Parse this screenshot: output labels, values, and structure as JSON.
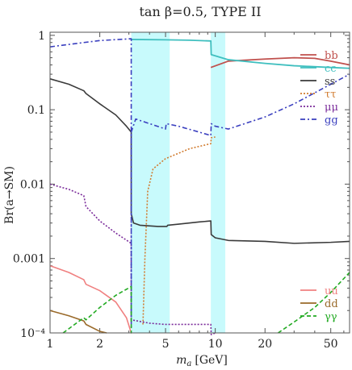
{
  "chart_data": {
    "type": "line",
    "title": "tan β=0.5, TYPE II",
    "xlabel_main": "m",
    "xlabel_sub": "a",
    "xlabel_unit": "[GeV]",
    "ylabel": "Br(a→SM)",
    "x_scale": "log",
    "y_scale": "log",
    "xlim": [
      1,
      65
    ],
    "ylim": [
      0.0001,
      1.1
    ],
    "x_ticks": [
      {
        "v": 1,
        "label": "1"
      },
      {
        "v": 2,
        "label": "2"
      },
      {
        "v": 5,
        "label": "5"
      },
      {
        "v": 10,
        "label": "10"
      },
      {
        "v": 20,
        "label": "20"
      },
      {
        "v": 50,
        "label": "50"
      }
    ],
    "y_ticks": [
      {
        "v": 1,
        "label": "1"
      },
      {
        "v": 0.1,
        "label": "0.1"
      },
      {
        "v": 0.01,
        "label": "0.01"
      },
      {
        "v": 0.001,
        "label": "0.001"
      },
      {
        "v": 0.0001,
        "label": "10⁻⁴"
      }
    ],
    "shaded_bands": [
      {
        "x": [
          3.1,
          5.3
        ],
        "color": "#c8fafc"
      },
      {
        "x": [
          9.4,
          11.5
        ],
        "color": "#c8fafc"
      }
    ],
    "legend_top": {
      "position": "top-right",
      "entries": [
        {
          "label": "bb",
          "color": "#c0504d",
          "dash": ""
        },
        {
          "label": "cc",
          "color": "#3fbfbf",
          "dash": ""
        },
        {
          "label": "ss",
          "color": "#3a3a3a",
          "dash": ""
        },
        {
          "label": "ττ",
          "color": "#d17b2f",
          "dash": "2,2"
        },
        {
          "label": "μμ",
          "color": "#7a2a9a",
          "dash": "2,2"
        },
        {
          "label": "gg",
          "color": "#3a3fbf",
          "dash": "6,3,2,3"
        }
      ]
    },
    "legend_bottom": {
      "position": "bottom-right",
      "entries": [
        {
          "label": "uu",
          "color": "#f08080",
          "dash": ""
        },
        {
          "label": "dd",
          "color": "#9a6a2a",
          "dash": ""
        },
        {
          "label": "γγ",
          "color": "#22aa22",
          "dash": "5,3"
        }
      ]
    },
    "series": [
      {
        "name": "bb",
        "color": "#c0504d",
        "dash": "",
        "width": 1.8,
        "points": [
          [
            9.4,
            0.37
          ],
          [
            12,
            0.45
          ],
          [
            20,
            0.48
          ],
          [
            30,
            0.5
          ],
          [
            40,
            0.49
          ],
          [
            50,
            0.45
          ],
          [
            65,
            0.4
          ]
        ]
      },
      {
        "name": "cc",
        "color": "#3fbfbf",
        "dash": "",
        "width": 1.8,
        "points": [
          [
            3.1,
            0.88
          ],
          [
            5,
            0.87
          ],
          [
            7,
            0.86
          ],
          [
            9.4,
            0.84
          ],
          [
            9.45,
            0.55
          ],
          [
            12,
            0.47
          ],
          [
            20,
            0.42
          ],
          [
            30,
            0.39
          ],
          [
            50,
            0.37
          ],
          [
            65,
            0.36
          ]
        ]
      },
      {
        "name": "ss",
        "color": "#3a3a3a",
        "dash": "",
        "width": 1.6,
        "points": [
          [
            1,
            0.26
          ],
          [
            1.3,
            0.22
          ],
          [
            1.6,
            0.18
          ],
          [
            1.65,
            0.165
          ],
          [
            2,
            0.12
          ],
          [
            2.5,
            0.085
          ],
          [
            2.9,
            0.06
          ],
          [
            3.1,
            0.05
          ],
          [
            3.1,
            0.004
          ],
          [
            3.2,
            0.003
          ],
          [
            3.5,
            0.0028
          ],
          [
            4.5,
            0.0027
          ],
          [
            5.1,
            0.0027
          ],
          [
            5.15,
            0.0028
          ],
          [
            6,
            0.0029
          ],
          [
            8,
            0.0031
          ],
          [
            9.4,
            0.0032
          ],
          [
            9.45,
            0.0021
          ],
          [
            10,
            0.0019
          ],
          [
            12,
            0.00175
          ],
          [
            20,
            0.0017
          ],
          [
            30,
            0.0016
          ],
          [
            50,
            0.00165
          ],
          [
            65,
            0.0017
          ]
        ]
      },
      {
        "name": "ττ",
        "color": "#d17b2f",
        "dash": "2,2",
        "width": 1.6,
        "points": [
          [
            3.65,
            0.00013
          ],
          [
            3.75,
            0.001
          ],
          [
            3.9,
            0.008
          ],
          [
            4.2,
            0.016
          ],
          [
            5,
            0.022
          ],
          [
            7,
            0.03
          ],
          [
            9.4,
            0.035
          ],
          [
            9.45,
            0.042
          ],
          [
            10,
            0.043
          ]
        ]
      },
      {
        "name": "μμ",
        "color": "#7a2a9a",
        "dash": "2,2",
        "width": 1.6,
        "points": [
          [
            1,
            0.01
          ],
          [
            1.3,
            0.0085
          ],
          [
            1.6,
            0.007
          ],
          [
            1.65,
            0.005
          ],
          [
            2,
            0.0032
          ],
          [
            2.5,
            0.0022
          ],
          [
            3.1,
            0.0016
          ],
          [
            3.1,
            0.00015
          ],
          [
            4,
            0.000135
          ],
          [
            5,
            0.00013
          ],
          [
            7,
            0.00013
          ],
          [
            9.4,
            0.00013
          ],
          [
            9.45,
            9.5e-05
          ],
          [
            10,
            0.0001
          ]
        ]
      },
      {
        "name": "gg",
        "color": "#3a3fbf",
        "dash": "6,3,2,3",
        "width": 1.6,
        "points": [
          [
            1,
            0.7
          ],
          [
            1.6,
            0.8
          ],
          [
            2,
            0.85
          ],
          [
            3.1,
            0.9
          ],
          [
            3.1,
            0.00012
          ],
          [
            3.1,
            0.05
          ],
          [
            3.3,
            0.075
          ],
          [
            4,
            0.065
          ],
          [
            5,
            0.055
          ],
          [
            5.05,
            0.065
          ],
          [
            6,
            0.06
          ],
          [
            8,
            0.05
          ],
          [
            9.4,
            0.045
          ],
          [
            9.45,
            0.065
          ],
          [
            10,
            0.06
          ],
          [
            12,
            0.055
          ],
          [
            20,
            0.08
          ],
          [
            30,
            0.12
          ],
          [
            50,
            0.22
          ],
          [
            65,
            0.3
          ]
        ]
      },
      {
        "name": "uu",
        "color": "#f08080",
        "dash": "",
        "width": 1.6,
        "points": [
          [
            1,
            0.0008
          ],
          [
            1.3,
            0.00065
          ],
          [
            1.6,
            0.00052
          ],
          [
            1.65,
            0.00045
          ],
          [
            2,
            0.00037
          ],
          [
            2.5,
            0.00026
          ],
          [
            2.9,
            0.00016
          ],
          [
            3.1,
            0.0001
          ]
        ]
      },
      {
        "name": "dd",
        "color": "#9a6a2a",
        "dash": "",
        "width": 1.6,
        "points": [
          [
            1,
            0.0002
          ],
          [
            1.3,
            0.00017
          ],
          [
            1.6,
            0.000145
          ],
          [
            1.65,
            0.00013
          ],
          [
            2,
            0.000105
          ],
          [
            2.2,
            0.0001
          ]
        ]
      },
      {
        "name": "γγ",
        "color": "#22aa22",
        "dash": "5,3",
        "width": 1.6,
        "points": [
          [
            1.2,
            0.0001
          ],
          [
            1.6,
            0.00016
          ],
          [
            1.65,
            0.00015
          ],
          [
            2,
            0.00022
          ],
          [
            2.5,
            0.00032
          ],
          [
            3.1,
            0.00042
          ],
          [
            3.1,
            0.0001
          ],
          [
            3.11,
            0.0001
          ]
        ]
      },
      {
        "name": "γγ (high mass)",
        "color": "#22aa22",
        "dash": "5,3",
        "width": 1.6,
        "points": [
          [
            24,
            0.0001
          ],
          [
            30,
            0.00014
          ],
          [
            40,
            0.00022
          ],
          [
            50,
            0.00035
          ],
          [
            65,
            0.00065
          ]
        ]
      }
    ]
  }
}
